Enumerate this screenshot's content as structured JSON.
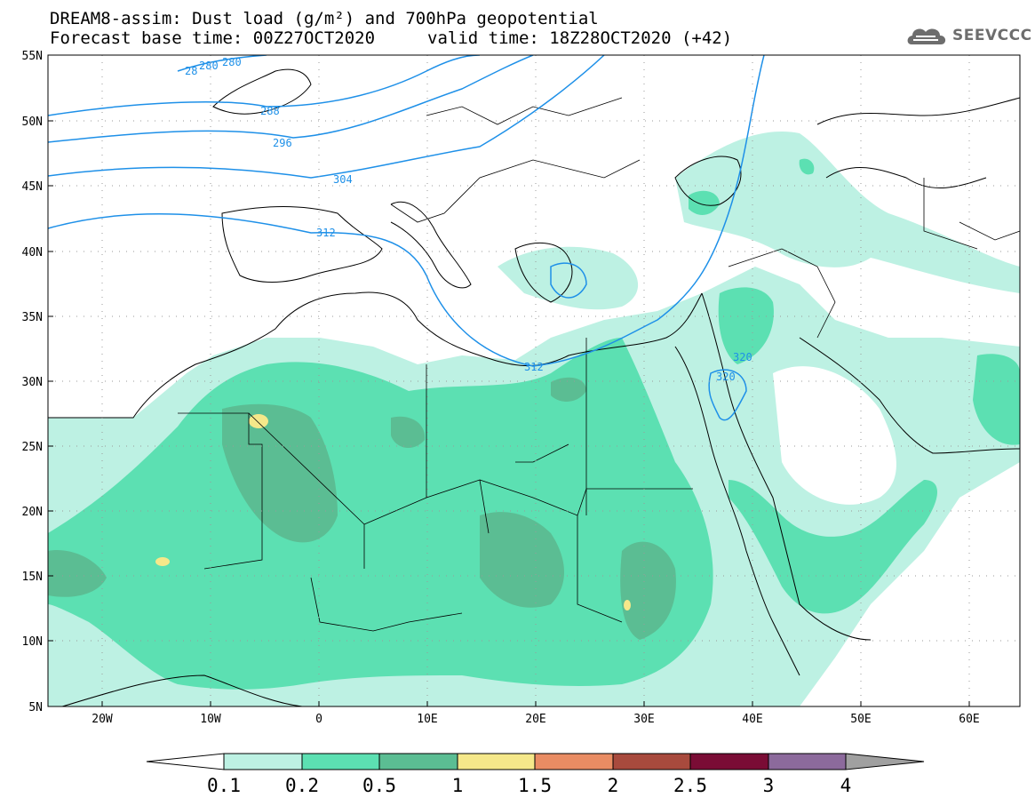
{
  "header": {
    "title": "DREAM8-assim: Dust load (g/m²) and 700hPa geopotential",
    "base_time": "Forecast base time: 00Z27OCT2020",
    "valid_time": "valid time: 18Z28OCT2020 (+42)"
  },
  "logo": {
    "text": "SEEVCCC",
    "icon": "cloud-logo-icon"
  },
  "map": {
    "lat_labels": [
      "55N",
      "50N",
      "45N",
      "40N",
      "35N",
      "30N",
      "25N",
      "20N",
      "15N",
      "10N",
      "5N"
    ],
    "lon_labels": [
      "20W",
      "10W",
      "0",
      "10E",
      "20E",
      "30E",
      "40E",
      "50E",
      "60E"
    ],
    "contour_labels": [
      "28",
      "280",
      "280",
      "288",
      "296",
      "304",
      "312",
      "312",
      "320",
      "320"
    ],
    "contour_color": "#1e90e8",
    "land_color": "#ffffff",
    "border_color": "#000000"
  },
  "colorbar": {
    "ticks": [
      "0.1",
      "0.2",
      "0.5",
      "1",
      "1.5",
      "2",
      "2.5",
      "3",
      "4"
    ],
    "colors": [
      "#ffffff",
      "#bdf1e3",
      "#5ce0b2",
      "#5bbd93",
      "#f5e88a",
      "#e98c63",
      "#a84a3d",
      "#7a0c35",
      "#8c6a9c",
      "#a0a0a0"
    ]
  }
}
